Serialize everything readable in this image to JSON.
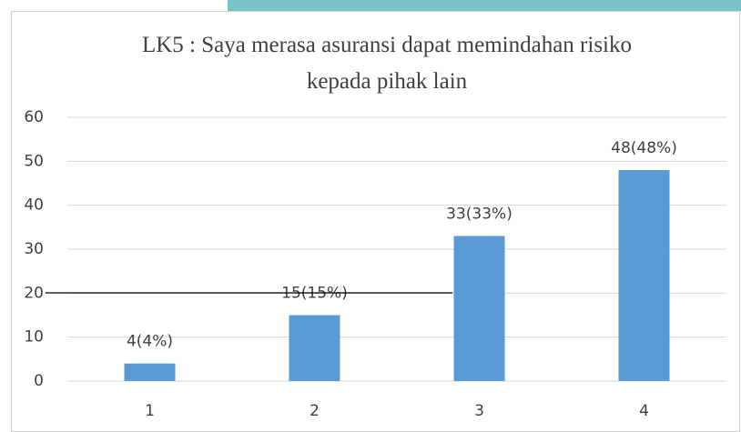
{
  "chart_data": {
    "type": "bar",
    "title": "LK5 : Saya merasa asuransi dapat memindahan risiko kepada pihak lain",
    "categories": [
      "1",
      "2",
      "3",
      "4"
    ],
    "values": [
      4,
      15,
      33,
      48
    ],
    "value_labels": [
      "4(4%)",
      "15(15%)",
      "33(33%)",
      "48(48%)"
    ],
    "color": "#5b9bd5",
    "ylim": [
      0,
      60
    ],
    "yticks": [
      0,
      10,
      20,
      30,
      40,
      50,
      60
    ],
    "grid": true
  }
}
